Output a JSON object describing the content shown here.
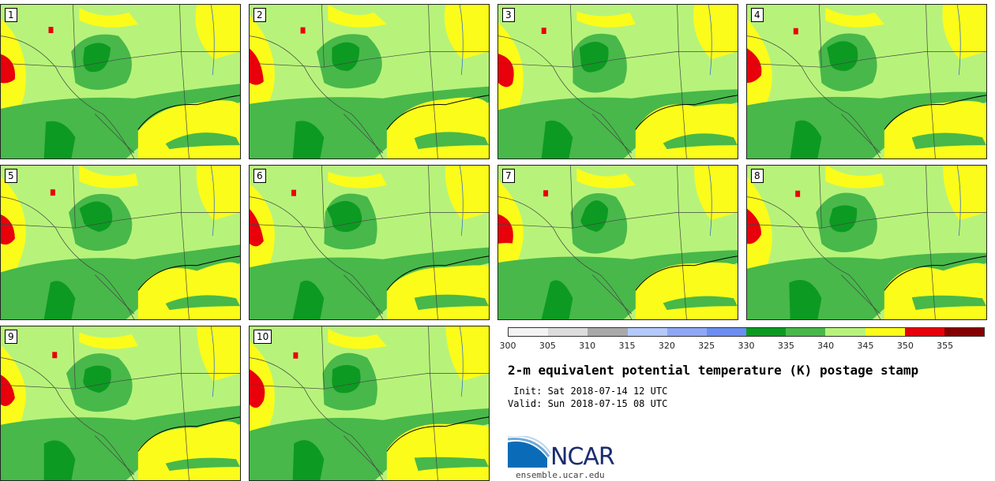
{
  "title": "2-m equivalent potential temperature (K) postage stamp",
  "init_line": " Init: Sat 2018-07-14 12 UTC",
  "valid_line": "Valid: Sun 2018-07-15 08 UTC",
  "logo_text": "NCAR",
  "site": "ensemble.ucar.edu",
  "members": [
    "1",
    "2",
    "3",
    "4",
    "5",
    "6",
    "7",
    "8",
    "9",
    "10"
  ],
  "colorbar": {
    "ticks": [
      "300",
      "305",
      "310",
      "315",
      "320",
      "325",
      "330",
      "335",
      "340",
      "345",
      "350",
      "355"
    ],
    "colors": [
      "#f3f3f3",
      "#dcdcdc",
      "#a9a9a9",
      "#b3c9fb",
      "#8ea8f3",
      "#6b8ef0",
      "#0d9a22",
      "#48b84a",
      "#b7f37a",
      "#fcfc1a",
      "#e8000b",
      "#850000"
    ]
  },
  "map_colors": {
    "bg": "#b7f37a",
    "mid": "#48b84a",
    "dark": "#0d9a22",
    "yellow": "#fcfc1a",
    "red": "#e8000b",
    "border": "#444444",
    "water": "#3b6fd0"
  }
}
